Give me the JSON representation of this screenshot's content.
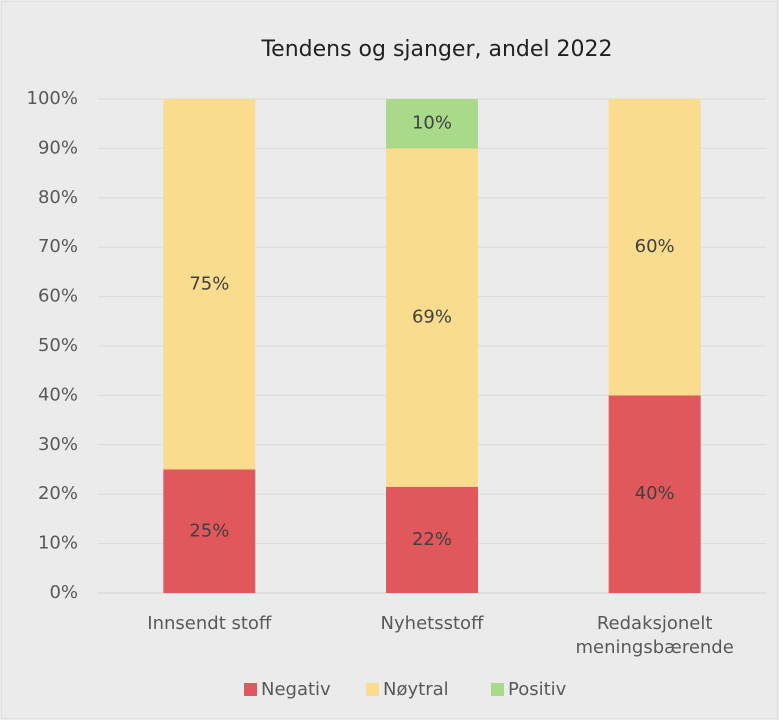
{
  "chart_data": {
    "type": "stacked_bar",
    "title": "Tendens og sjanger, andel 2022",
    "categories": [
      "Innsendt stoff",
      "Nyhetsstoff",
      "Redaksjonelt meningsbærende"
    ],
    "series": [
      {
        "name": "Negativ",
        "color": "#e0575c",
        "values": [
          25,
          21.5,
          40
        ],
        "value_labels": [
          "25%",
          "22%",
          "40%"
        ]
      },
      {
        "name": "Nøytral",
        "color": "#fadc8e",
        "values": [
          75,
          68.5,
          60
        ],
        "value_labels": [
          "75%",
          "69%",
          "60%"
        ]
      },
      {
        "name": "Positiv",
        "color": "#a8da8a",
        "values": [
          0,
          10,
          0
        ],
        "value_labels": [
          null,
          "10%",
          null
        ]
      }
    ],
    "ylim": [
      0,
      100
    ],
    "yticks": [
      {
        "value": 0,
        "label": "0%"
      },
      {
        "value": 10,
        "label": "10%"
      },
      {
        "value": 20,
        "label": "20%"
      },
      {
        "value": 30,
        "label": "30%"
      },
      {
        "value": 40,
        "label": "40%"
      },
      {
        "value": 50,
        "label": "50%"
      },
      {
        "value": 60,
        "label": "60%"
      },
      {
        "value": 70,
        "label": "70%"
      },
      {
        "value": 80,
        "label": "80%"
      },
      {
        "value": 90,
        "label": "90%"
      },
      {
        "value": 100,
        "label": "100%"
      }
    ],
    "grid": true,
    "legend": "bottom"
  }
}
